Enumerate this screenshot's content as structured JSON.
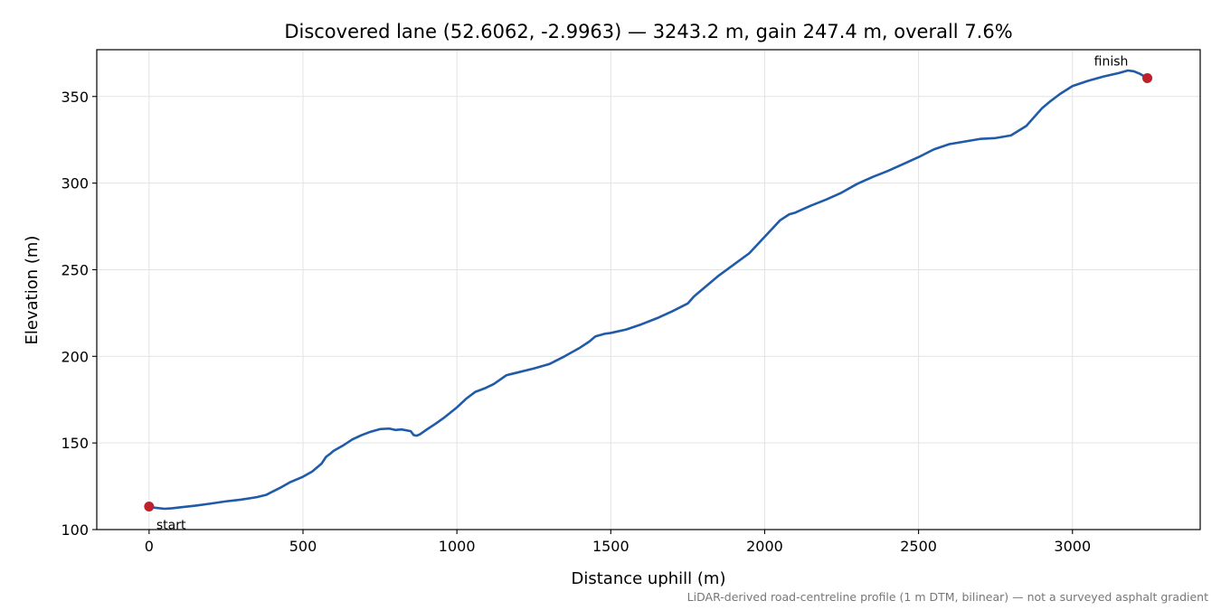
{
  "chart_data": {
    "type": "line",
    "title": "Discovered lane (52.6062, -2.9963) — 3243.2 m, gain 247.4 m, overall 7.6%",
    "xlabel": "Distance uphill (m)",
    "ylabel": "Elevation (m)",
    "footnote": "LiDAR-derived road-centreline profile (1 m DTM, bilinear) — not a surveyed asphalt gradient",
    "xlim": [
      -170,
      3415
    ],
    "ylim": [
      100,
      377
    ],
    "x_ticks": [
      0,
      500,
      1000,
      1500,
      2000,
      2500,
      3000
    ],
    "y_ticks": [
      100,
      150,
      200,
      250,
      300,
      350
    ],
    "grid": true,
    "line_color": "#1f5ba8",
    "marker_color": "#c0202a",
    "series": [
      {
        "x": [
          0,
          25,
          50,
          75,
          100,
          150,
          200,
          250,
          300,
          350,
          380,
          400,
          430,
          460,
          500,
          530,
          560,
          575,
          590,
          600,
          630,
          660,
          690,
          720,
          750,
          780,
          800,
          820,
          850,
          860,
          870,
          880,
          900,
          930,
          960,
          1000,
          1030,
          1060,
          1090,
          1120,
          1160,
          1170,
          1200,
          1250,
          1300,
          1350,
          1400,
          1430,
          1450,
          1480,
          1500,
          1550,
          1600,
          1650,
          1700,
          1750,
          1770,
          1800,
          1850,
          1900,
          1950,
          2000,
          2050,
          2080,
          2100,
          2150,
          2200,
          2250,
          2300,
          2350,
          2400,
          2450,
          2500,
          2550,
          2600,
          2650,
          2700,
          2750,
          2800,
          2850,
          2870,
          2900,
          2930,
          2960,
          3000,
          3050,
          3100,
          3150,
          3180,
          3200,
          3220,
          3243.2
        ],
        "y": [
          113,
          112.5,
          112,
          112.3,
          112.8,
          113.8,
          115,
          116.3,
          117.3,
          118.7,
          120,
          121.8,
          124.5,
          127.5,
          130.5,
          133.5,
          138,
          142,
          144,
          145.5,
          148.5,
          152,
          154.5,
          156.5,
          158,
          158.3,
          157.5,
          157.8,
          156.8,
          154.5,
          154.2,
          155,
          157.5,
          161,
          164.8,
          170.5,
          175.5,
          179.5,
          181.5,
          184,
          189,
          189.5,
          190.8,
          193,
          195.5,
          200,
          205,
          208.5,
          211.5,
          213,
          213.5,
          215.5,
          218.5,
          222,
          226,
          230.5,
          234.5,
          239,
          246.5,
          253,
          259.5,
          269,
          278.5,
          282,
          283,
          287,
          290.5,
          294.5,
          299.5,
          303.5,
          307,
          311,
          315,
          319.5,
          322.5,
          324,
          325.5,
          326,
          327.5,
          333,
          337,
          343,
          347.5,
          351.5,
          356,
          359,
          361.5,
          363.5,
          365,
          364.5,
          363,
          360.6
        ]
      }
    ],
    "annotations": {
      "start_label": "start",
      "finish_label": "finish",
      "start_point": [
        0,
        113.3
      ],
      "finish_point": [
        3243.2,
        360.6
      ]
    }
  }
}
